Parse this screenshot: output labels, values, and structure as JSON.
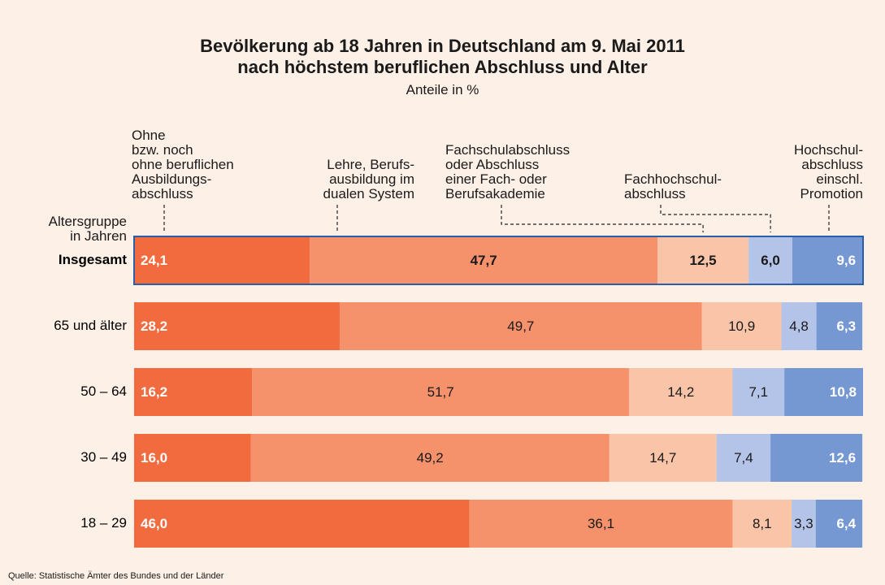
{
  "chart_data": {
    "type": "stacked-bar-horizontal",
    "title": "Bevölkerung ab 18 Jahren in Deutschland am 9. Mai 2011\nnach höchstem beruflichen Abschluss und Alter",
    "subtitle": "Anteile in %",
    "y_axis_label": "Altersgruppe\nin Jahren",
    "source": "Quelle: Statistische Ämter des Bundes und der Länder",
    "categories": [
      "Insgesamt",
      "65 und älter",
      "50 – 64",
      "30 – 49",
      "18 – 29"
    ],
    "xlim": [
      0,
      100
    ],
    "series": [
      {
        "name": "Ohne\nbzw. noch\nohne beruflichen\nAusbildungs-\nabschluss",
        "color": "#f26b3f",
        "values": [
          24.1,
          28.2,
          16.2,
          16.0,
          46.0
        ],
        "value_labels": [
          "24,1",
          "28,2",
          "16,2",
          "16,0",
          "46,0"
        ]
      },
      {
        "name": "Lehre, Berufs-\nausbildung im\ndualen System",
        "color": "#f5916b",
        "values": [
          47.7,
          49.7,
          51.7,
          49.2,
          36.1
        ],
        "value_labels": [
          "47,7",
          "49,7",
          "51,7",
          "49,2",
          "36,1"
        ]
      },
      {
        "name": "Fachschulabschluss\noder Abschluss\neiner Fach- oder\nBerufsakademie",
        "color": "#f9c4a7",
        "values": [
          12.5,
          10.9,
          14.2,
          14.7,
          8.1
        ],
        "value_labels": [
          "12,5",
          "10,9",
          "14,2",
          "14,7",
          "8,1"
        ]
      },
      {
        "name": "Fachhochschul-\nabschluss",
        "color": "#b4c4e8",
        "values": [
          6.0,
          4.8,
          7.1,
          7.4,
          3.3
        ],
        "value_labels": [
          "6,0",
          "4,8",
          "7,1",
          "7,4",
          "3,3"
        ]
      },
      {
        "name": "Hochschul-\nabschluss\neinschl.\nPromotion",
        "color": "#7698d2",
        "values": [
          9.6,
          6.3,
          10.8,
          12.6,
          6.4
        ],
        "value_labels": [
          "9,6",
          "6,3",
          "10,8",
          "12,6",
          "6,4"
        ]
      }
    ]
  }
}
